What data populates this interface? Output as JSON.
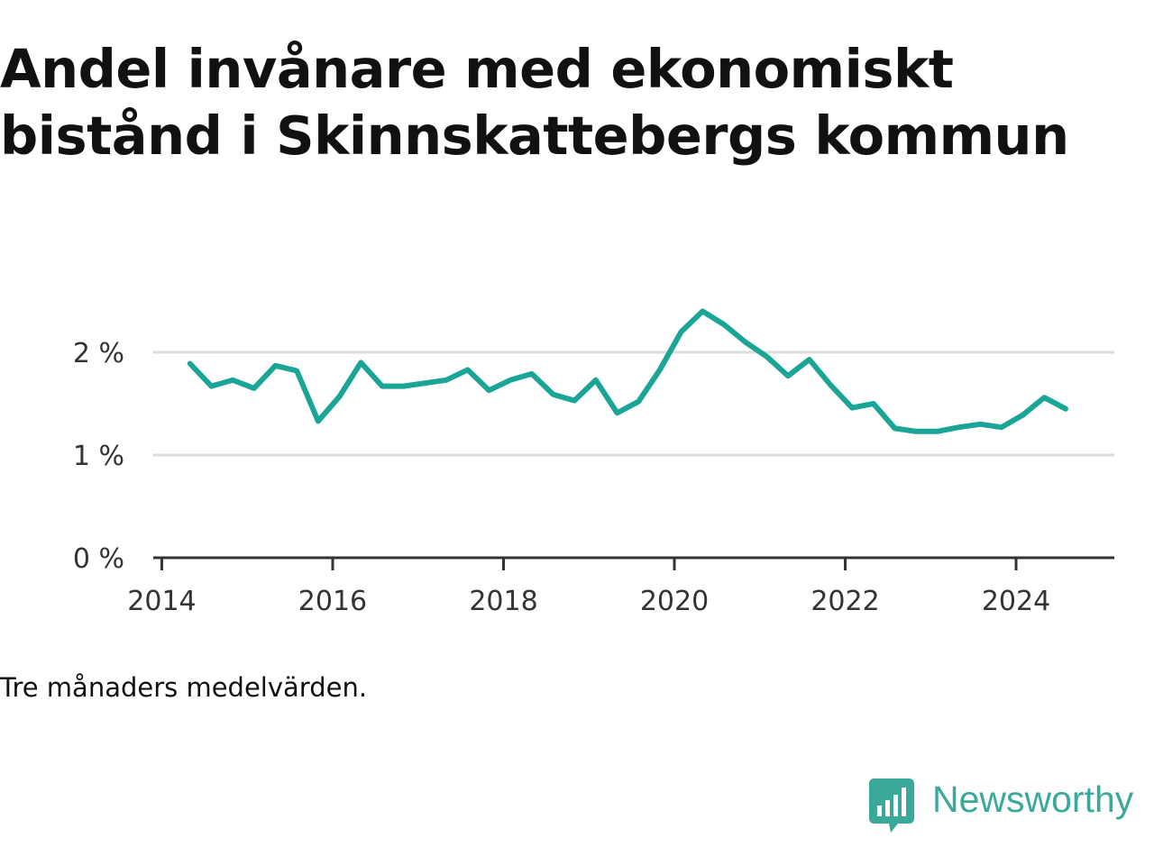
{
  "title_lines": [
    "Andel invånare med ekonomiskt",
    "bistånd i Skinnskattebergs kommun"
  ],
  "note": "Tre månaders medelvärden.",
  "brand": {
    "name": "Newsworthy",
    "icon": "newsworthy-logo-icon"
  },
  "colors": {
    "line": "#1aa597",
    "grid": "#dddddd",
    "axis": "#333333",
    "brand": "#3aa99a"
  },
  "chart_data": {
    "type": "line",
    "title": "Andel invånare med ekonomiskt bistånd i Skinnskattebergs kommun",
    "xlabel": "",
    "ylabel": "",
    "xlim": [
      2013.9,
      2025.15
    ],
    "ylim": [
      0,
      2.5
    ],
    "x_ticks": [
      2014,
      2016,
      2018,
      2020,
      2022,
      2024
    ],
    "x_tick_labels": [
      "2014",
      "2016",
      "2018",
      "2020",
      "2022",
      "2024"
    ],
    "y_ticks": [
      0,
      1,
      2
    ],
    "y_tick_labels": [
      "0 %",
      "1 %",
      "2 %"
    ],
    "grid": true,
    "series": [
      {
        "x": [
          2014.33,
          2014.58,
          2014.83,
          2015.08,
          2015.33,
          2015.58,
          2015.83,
          2016.08,
          2016.33,
          2016.58,
          2016.83,
          2017.08,
          2017.33,
          2017.58,
          2017.83,
          2018.08,
          2018.33,
          2018.58,
          2018.83,
          2019.08,
          2019.33,
          2019.58,
          2019.83,
          2020.08,
          2020.33,
          2020.58,
          2020.83,
          2021.08,
          2021.33,
          2021.58,
          2021.83,
          2022.08,
          2022.33,
          2022.58,
          2022.83,
          2023.08,
          2023.33,
          2023.58,
          2023.83,
          2024.08,
          2024.33,
          2024.58
        ],
        "values": [
          1.89,
          1.67,
          1.73,
          1.65,
          1.87,
          1.82,
          1.33,
          1.57,
          1.9,
          1.67,
          1.67,
          1.7,
          1.73,
          1.83,
          1.63,
          1.73,
          1.79,
          1.59,
          1.53,
          1.73,
          1.41,
          1.52,
          1.83,
          2.2,
          2.4,
          2.27,
          2.1,
          1.96,
          1.77,
          1.93,
          1.68,
          1.46,
          1.5,
          1.26,
          1.23,
          1.23,
          1.27,
          1.3,
          1.27,
          1.39,
          1.56,
          1.45
        ]
      }
    ]
  }
}
